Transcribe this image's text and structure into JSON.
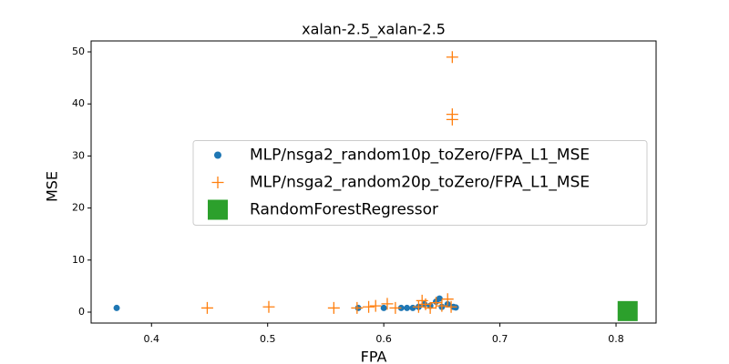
{
  "chart_data": {
    "type": "scatter",
    "title": "xalan-2.5_xalan-2.5",
    "x_label": "FPA",
    "y_label": "MSE",
    "xlim": [
      0.348,
      0.8345
    ],
    "xticks": [
      0.4,
      0.5,
      0.6,
      0.7,
      0.8
    ],
    "ylim": [
      -2.1,
      52.1
    ],
    "yticks": [
      0,
      10,
      20,
      30,
      40,
      50
    ],
    "grid": false,
    "legend": "center right",
    "series": [
      {
        "name": "MLP/nsga2_random10p_toZero/FPA_L1_MSE",
        "color": "#1f77b4",
        "marker": "o",
        "x": [
          0.37,
          0.578,
          0.6,
          0.615,
          0.62,
          0.625,
          0.63,
          0.635,
          0.64,
          0.645,
          0.648,
          0.65,
          0.655,
          0.66,
          0.662
        ],
        "values": [
          0.8,
          0.8,
          0.8,
          0.8,
          0.8,
          0.8,
          1.0,
          1.5,
          1.2,
          2.0,
          2.6,
          1.0,
          1.5,
          1.0,
          0.9
        ]
      },
      {
        "name": "MLP/nsga2_random20p_toZero/FPA_L1_MSE",
        "color": "#ff7f0e",
        "marker": "+",
        "x": [
          0.448,
          0.501,
          0.557,
          0.577,
          0.587,
          0.593,
          0.603,
          0.61,
          0.63,
          0.633,
          0.636,
          0.64,
          0.645,
          0.65,
          0.655,
          0.658,
          0.659,
          0.659,
          0.659
        ],
        "values": [
          0.8,
          1.0,
          0.8,
          0.8,
          1.0,
          1.2,
          1.6,
          0.8,
          1.0,
          2.2,
          1.5,
          0.8,
          1.8,
          1.2,
          2.5,
          1.0,
          49,
          38,
          37
        ]
      },
      {
        "name": "RandomForestRegressor",
        "color": "#2ca02c",
        "marker": "s",
        "x": [
          0.81
        ],
        "values": [
          0.2
        ]
      }
    ]
  }
}
